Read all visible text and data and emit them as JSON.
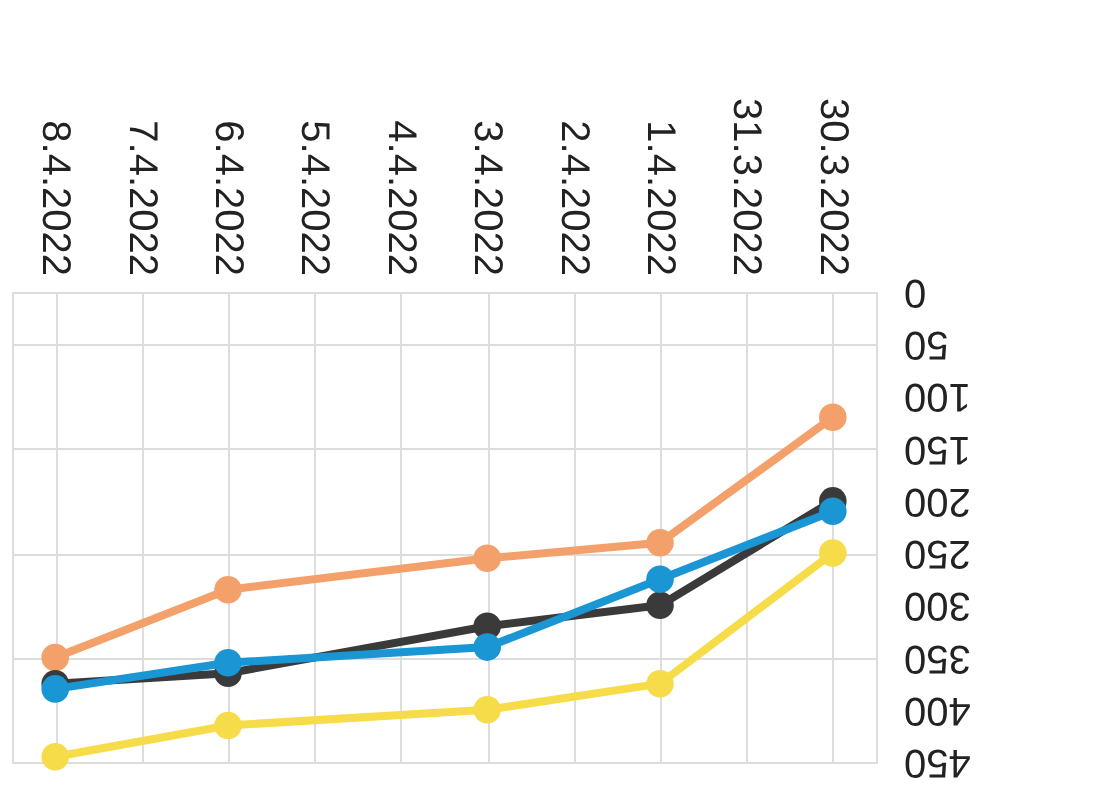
{
  "chart_data": {
    "type": "line",
    "categories": [
      "8.4.2022",
      "7.4.2022",
      "6.4.2022",
      "5.4.2022",
      "4.4.2022",
      "3.4.2022",
      "2.4.2022",
      "1.4.2022",
      "31.3.2022",
      "30.3.2022"
    ],
    "series": [
      {
        "color": "#f4a06a",
        "values": [
          350,
          null,
          285,
          null,
          null,
          255,
          null,
          240,
          null,
          120
        ]
      },
      {
        "color": "#3a3a3a",
        "values": [
          375,
          null,
          365,
          null,
          null,
          320,
          null,
          300,
          null,
          200
        ]
      },
      {
        "color": "#1a96d4",
        "values": [
          380,
          null,
          355,
          null,
          null,
          340,
          null,
          275,
          null,
          210
        ]
      },
      {
        "color": "#f7dc4a",
        "values": [
          445,
          null,
          415,
          null,
          null,
          400,
          null,
          375,
          null,
          250
        ]
      }
    ],
    "ylim": [
      450,
      0
    ],
    "yticks": [
      0,
      50,
      100,
      150,
      200,
      250,
      300,
      350,
      400,
      450
    ],
    "grid": true,
    "marker": "circle",
    "line_style": "solid"
  }
}
